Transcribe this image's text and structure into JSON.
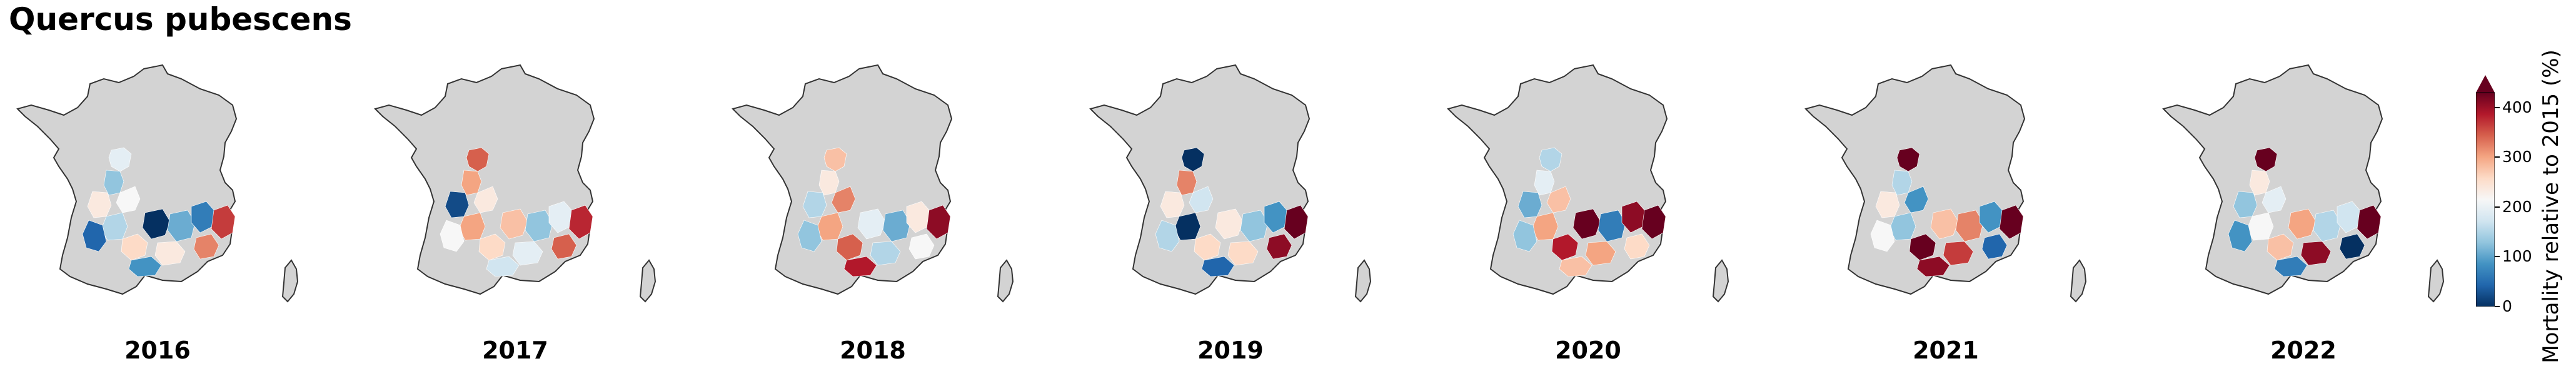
{
  "title": "Quercus pubescens",
  "colors": {
    "land": "#d3d3d3",
    "outline": "#333333",
    "colormap": [
      "#053061",
      "#2166ac",
      "#4393c3",
      "#92c5de",
      "#d1e5f0",
      "#f7f7f7",
      "#fddbc7",
      "#f4a582",
      "#d6604d",
      "#b2182b",
      "#67001f"
    ]
  },
  "colorbar": {
    "label": "Mortality relative to 2015 (%)",
    "ticks": [
      "0",
      "100",
      "200",
      "300",
      "400"
    ],
    "range": [
      0,
      430
    ],
    "extend": "max"
  },
  "panels": [
    {
      "year": "2016",
      "regions": [
        {
          "r": "sw-coast",
          "v": 0.55
        },
        {
          "r": "aquitaine-n",
          "v": 0.3
        },
        {
          "r": "limousin",
          "v": 0.5
        },
        {
          "r": "loire-n",
          "v": 0.45
        },
        {
          "r": "aquitaine-s",
          "v": 0.35
        },
        {
          "r": "gers",
          "v": 0.6
        },
        {
          "r": "midi-w",
          "v": 0.1
        },
        {
          "r": "midi-c",
          "v": 0.0
        },
        {
          "r": "cevennes",
          "v": 0.25
        },
        {
          "r": "rhone",
          "v": 0.15
        },
        {
          "r": "provence",
          "v": 0.85
        },
        {
          "r": "alps-s",
          "v": 0.75
        },
        {
          "r": "pyrenees",
          "v": 0.2
        },
        {
          "r": "languedoc",
          "v": 0.55
        }
      ]
    },
    {
      "year": "2017",
      "regions": [
        {
          "r": "loire-n",
          "v": 0.8
        },
        {
          "r": "aquitaine-n",
          "v": 0.7
        },
        {
          "r": "limousin",
          "v": 0.55
        },
        {
          "r": "sw-coast",
          "v": 0.05
        },
        {
          "r": "aquitaine-s",
          "v": 0.7
        },
        {
          "r": "gers",
          "v": 0.6
        },
        {
          "r": "midi-w",
          "v": 0.5
        },
        {
          "r": "midi-c",
          "v": 0.65
        },
        {
          "r": "cevennes",
          "v": 0.3
        },
        {
          "r": "rhone",
          "v": 0.45
        },
        {
          "r": "provence",
          "v": 0.88
        },
        {
          "r": "alps-s",
          "v": 0.8
        },
        {
          "r": "pyrenees",
          "v": 0.4
        },
        {
          "r": "languedoc",
          "v": 0.45
        }
      ]
    },
    {
      "year": "2018",
      "regions": [
        {
          "r": "loire-n",
          "v": 0.65
        },
        {
          "r": "aquitaine-n",
          "v": 0.55
        },
        {
          "r": "limousin",
          "v": 0.75
        },
        {
          "r": "sw-coast",
          "v": 0.35
        },
        {
          "r": "aquitaine-s",
          "v": 0.7
        },
        {
          "r": "gers",
          "v": 0.8
        },
        {
          "r": "midi-w",
          "v": 0.3
        },
        {
          "r": "midi-c",
          "v": 0.45
        },
        {
          "r": "cevennes",
          "v": 0.25
        },
        {
          "r": "rhone",
          "v": 0.55
        },
        {
          "r": "provence",
          "v": 0.95
        },
        {
          "r": "alps-s",
          "v": 0.5
        },
        {
          "r": "pyrenees",
          "v": 0.9
        },
        {
          "r": "languedoc",
          "v": 0.35
        }
      ]
    },
    {
      "year": "2019",
      "regions": [
        {
          "r": "loire-n",
          "v": 0.0
        },
        {
          "r": "aquitaine-n",
          "v": 0.75
        },
        {
          "r": "limousin",
          "v": 0.4
        },
        {
          "r": "sw-coast",
          "v": 0.55
        },
        {
          "r": "aquitaine-s",
          "v": 0.0
        },
        {
          "r": "gers",
          "v": 0.6
        },
        {
          "r": "midi-w",
          "v": 0.35
        },
        {
          "r": "midi-c",
          "v": 0.55
        },
        {
          "r": "cevennes",
          "v": 0.3
        },
        {
          "r": "rhone",
          "v": 0.2
        },
        {
          "r": "provence",
          "v": 1.0
        },
        {
          "r": "alps-s",
          "v": 0.95
        },
        {
          "r": "pyrenees",
          "v": 0.1
        },
        {
          "r": "languedoc",
          "v": 0.6
        }
      ]
    },
    {
      "year": "2020",
      "regions": [
        {
          "r": "loire-n",
          "v": 0.35
        },
        {
          "r": "aquitaine-n",
          "v": 0.45
        },
        {
          "r": "limousin",
          "v": 0.65
        },
        {
          "r": "sw-coast",
          "v": 0.25
        },
        {
          "r": "aquitaine-s",
          "v": 0.7
        },
        {
          "r": "gers",
          "v": 0.9
        },
        {
          "r": "midi-w",
          "v": 0.3
        },
        {
          "r": "midi-c",
          "v": 1.0
        },
        {
          "r": "cevennes",
          "v": 0.15
        },
        {
          "r": "rhone",
          "v": 0.95
        },
        {
          "r": "provence",
          "v": 1.0
        },
        {
          "r": "alps-s",
          "v": 0.6
        },
        {
          "r": "pyrenees",
          "v": 0.65
        },
        {
          "r": "languedoc",
          "v": 0.7
        }
      ]
    },
    {
      "year": "2021",
      "regions": [
        {
          "r": "loire-n",
          "v": 1.0
        },
        {
          "r": "aquitaine-n",
          "v": 0.35
        },
        {
          "r": "limousin",
          "v": 0.2
        },
        {
          "r": "sw-coast",
          "v": 0.55
        },
        {
          "r": "aquitaine-s",
          "v": 0.3
        },
        {
          "r": "gers",
          "v": 1.0
        },
        {
          "r": "midi-w",
          "v": 0.5
        },
        {
          "r": "midi-c",
          "v": 0.65
        },
        {
          "r": "cevennes",
          "v": 0.75
        },
        {
          "r": "rhone",
          "v": 0.2
        },
        {
          "r": "provence",
          "v": 1.0
        },
        {
          "r": "alps-s",
          "v": 0.1
        },
        {
          "r": "pyrenees",
          "v": 0.95
        },
        {
          "r": "languedoc",
          "v": 0.85
        }
      ]
    },
    {
      "year": "2022",
      "regions": [
        {
          "r": "loire-n",
          "v": 1.0
        },
        {
          "r": "aquitaine-n",
          "v": 0.55
        },
        {
          "r": "limousin",
          "v": 0.45
        },
        {
          "r": "sw-coast",
          "v": 0.3
        },
        {
          "r": "aquitaine-s",
          "v": 0.5
        },
        {
          "r": "gers",
          "v": 0.65
        },
        {
          "r": "midi-w",
          "v": 0.2
        },
        {
          "r": "midi-c",
          "v": 0.7
        },
        {
          "r": "cevennes",
          "v": 0.35
        },
        {
          "r": "rhone",
          "v": 0.4
        },
        {
          "r": "provence",
          "v": 1.0
        },
        {
          "r": "alps-s",
          "v": 0.0
        },
        {
          "r": "pyrenees",
          "v": 0.15
        },
        {
          "r": "languedoc",
          "v": 0.95
        }
      ]
    }
  ]
}
